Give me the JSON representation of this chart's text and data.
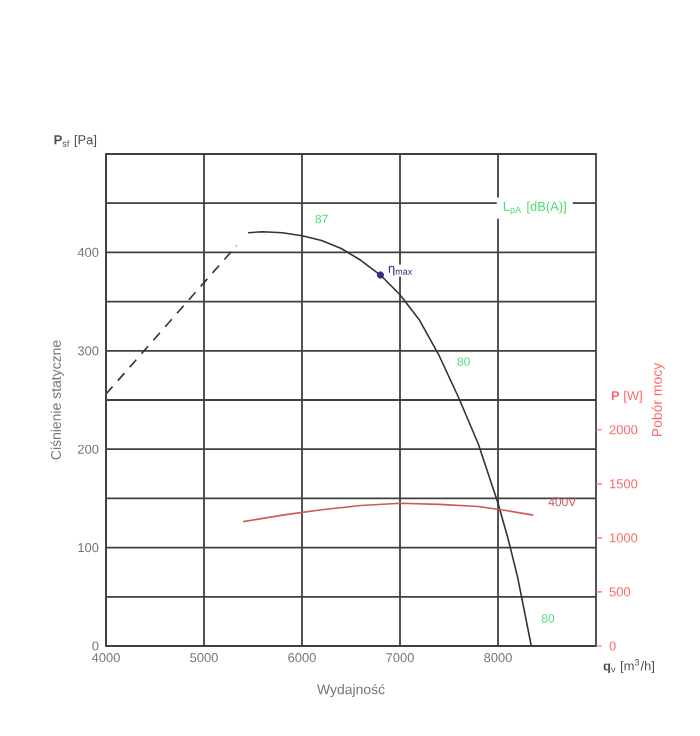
{
  "chart_data": {
    "type": "line",
    "xlabel": "Wydajność",
    "ylabel": "Ciśnienie statyczne",
    "y2label": "Pobór mocy",
    "xlim": [
      4000,
      9000
    ],
    "xticks": [
      4000,
      5000,
      6000,
      7000,
      8000
    ],
    "ylim": [
      0,
      500
    ],
    "yticks": [
      0,
      {
        "value": 50,
        "label": null
      },
      100,
      {
        "value": 150,
        "label": null
      },
      200,
      {
        "value": 250,
        "label": null
      },
      300,
      {
        "value": 350,
        "label": null
      },
      400,
      {
        "value": 450,
        "label": null
      }
    ],
    "y2lim": [
      0,
      4550
    ],
    "y2ticks": [
      0,
      500,
      1000,
      1500,
      2000
    ],
    "grid": true,
    "series": [
      {
        "color": "#333333",
        "x": [
          5450,
          5600,
          5800,
          6000,
          6200,
          6400,
          6600,
          6800,
          7000,
          7200,
          7400,
          7600,
          7800,
          8000,
          8100,
          8200,
          8340
        ],
        "values": [
          420,
          421,
          420,
          417,
          412,
          404,
          392,
          377,
          357,
          331,
          295,
          252,
          205,
          145,
          110,
          70,
          0
        ]
      },
      {
        "color": "#333333",
        "line_style": "dashed",
        "x": [
          4000,
          5333
        ],
        "values": [
          256,
          407
        ]
      },
      {
        "name": "400V",
        "color": "#d0585c",
        "axis": "y2",
        "x": [
          5400,
          5800,
          6200,
          6600,
          7000,
          7400,
          7800,
          8100,
          8360
        ],
        "values": [
          1150,
          1210,
          1260,
          1300,
          1320,
          1310,
          1290,
          1250,
          1210
        ]
      },
      {
        "name": "η$_{max}$",
        "type": "scatter",
        "marker": "circle",
        "color": "#2e2e80",
        "x": [
          6800
        ],
        "values": [
          377
        ]
      }
    ],
    "annotations": [
      "87",
      "80",
      "80",
      "L$_{pA}$ [dB(A)]",
      "**P**$_{sf}$ [Pa]",
      "**q**$_{v}$ [m$^{3}$/h]",
      "**P** [W]"
    ]
  }
}
